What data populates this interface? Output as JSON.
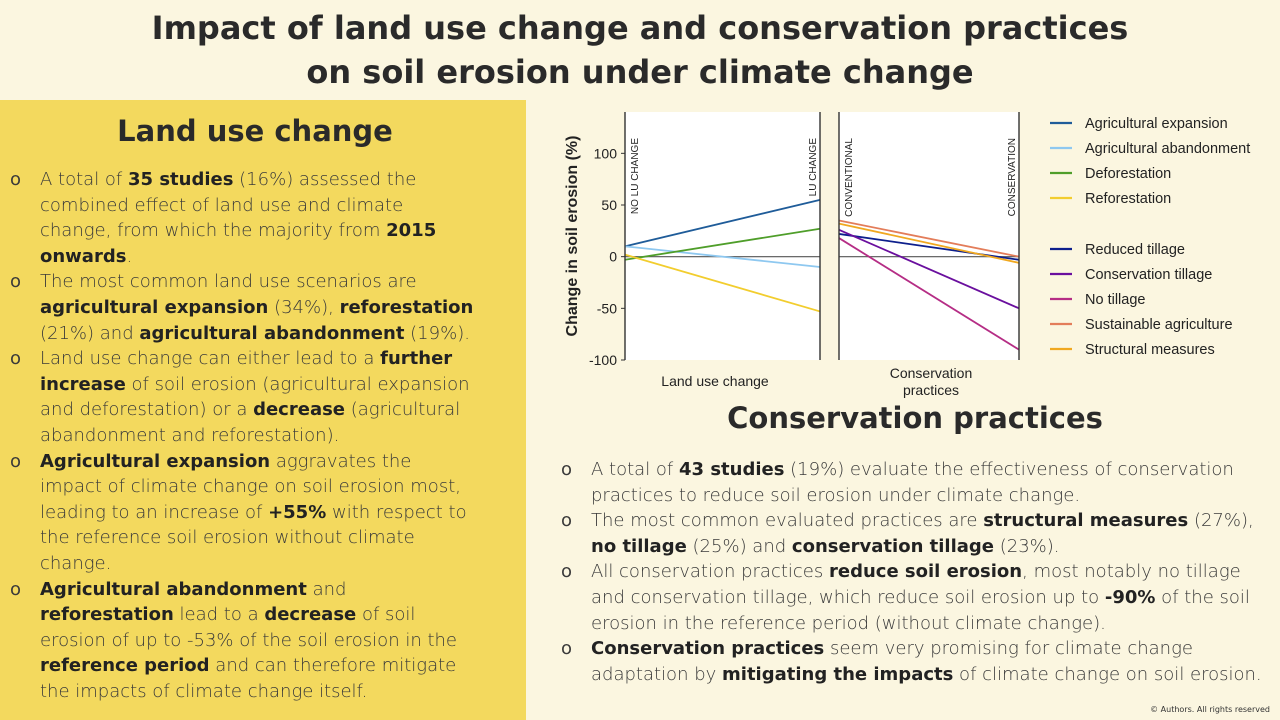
{
  "title": {
    "line1": "Impact of land use change and conservation practices",
    "line2": "on soil erosion under climate change"
  },
  "land_use": {
    "heading": "Land use change",
    "b1": [
      "A total of ",
      "35 studies",
      " (16%) assessed  the combined effect of land use and climate change, from which the majority from ",
      "2015 onwards",
      "."
    ],
    "b2": [
      "The most common land use scenarios are ",
      "agricultural expansion",
      " (34%), ",
      "reforestation",
      " (21%) and ",
      "agricultural abandonment",
      " (19%)."
    ],
    "b3": [
      "Land use change can either lead to a ",
      "further increase",
      " of soil erosion (agricultural expansion and deforestation) or a ",
      "decrease",
      " (agricultural abandonment and reforestation)."
    ],
    "b4": [
      "Agricultural expansion",
      " aggravates the impact of climate change on soil erosion most, leading to an increase of ",
      "+55%",
      " with respect to the reference soil erosion without climate change."
    ],
    "b5": [
      "Agricultural abandonment",
      " and ",
      "reforestation",
      " lead to a ",
      "decrease",
      " of soil erosion of up to -53% of the soil erosion in the ",
      "reference period",
      " and can therefore mitigate the impacts of climate change itself."
    ]
  },
  "conservation": {
    "heading": "Conservation practices",
    "b1": [
      "A total of ",
      "43 studies",
      " (19%) evaluate the effectiveness of conservation practices to reduce soil erosion under climate change."
    ],
    "b2": [
      "The most common evaluated practices are ",
      "structural measures",
      " (27%), ",
      "no tillage",
      " (25%) and ",
      "conservation tillage",
      " (23%)."
    ],
    "b3": [
      "All conservation practices ",
      "reduce soil erosion",
      ", most notably no tillage and conservation tillage, which reduce soil erosion up to ",
      "-90%",
      " of the soil erosion in the reference period (without climate change)."
    ],
    "b4": [
      "Conservation practices",
      " seem very promising for climate change adaptation by ",
      "mitigating the impacts",
      " of climate change on soil erosion."
    ]
  },
  "copyright": "© Authors. All rights reserved",
  "chart_data": [
    {
      "type": "line",
      "xlabel": "Land use change",
      "ylabel": "Change in soil erosion (%)",
      "ylim": [
        -100,
        140
      ],
      "yticks": [
        -100,
        -50,
        0,
        50,
        100
      ],
      "x": [
        "NO LU CHANGE",
        "LU CHANGE"
      ],
      "series": [
        {
          "name": "Agricultural expansion",
          "color": "#1f5c99",
          "values": [
            10,
            55
          ]
        },
        {
          "name": "Agricultural abandonment",
          "color": "#8ec8f0",
          "values": [
            10,
            -10
          ]
        },
        {
          "name": "Deforestation",
          "color": "#4f9e2a",
          "values": [
            -3,
            27
          ]
        },
        {
          "name": "Reforestation",
          "color": "#f2cd2e",
          "values": [
            2,
            -53
          ]
        }
      ],
      "legend": "right"
    },
    {
      "type": "line",
      "xlabel": "Conservation practices",
      "ylabel": "",
      "ylim": [
        -100,
        140
      ],
      "x": [
        "CONVENTIONAL",
        "CONSERVATION"
      ],
      "series": [
        {
          "name": "Reduced tillage",
          "color": "#0d1f8c",
          "values": [
            22,
            -3
          ]
        },
        {
          "name": "Conservation tillage",
          "color": "#6a0f9e",
          "values": [
            26,
            -50
          ]
        },
        {
          "name": "No tillage",
          "color": "#b52d85",
          "values": [
            18,
            -90
          ]
        },
        {
          "name": "Sustainable agriculture",
          "color": "#e37d5a",
          "values": [
            35,
            0
          ]
        },
        {
          "name": "Structural measures",
          "color": "#f0a820",
          "values": [
            32,
            -6
          ]
        }
      ],
      "legend": "right"
    }
  ]
}
